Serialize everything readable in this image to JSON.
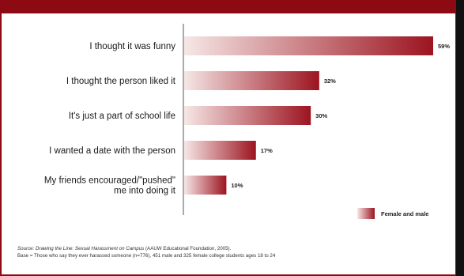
{
  "chart_data": {
    "type": "bar",
    "orientation": "horizontal",
    "categories": [
      "I thought it was funny",
      "I thought the person liked it",
      "It's just a part of school life",
      "I wanted a date with the person",
      "My friends encouraged/\"pushed\" me into doing it"
    ],
    "category_lines": [
      [
        "I thought it was funny"
      ],
      [
        "I thought the person liked it"
      ],
      [
        "It's just a part of school life"
      ],
      [
        "I wanted a date with the person"
      ],
      [
        "My friends encouraged/\"pushed\"",
        "me into doing it"
      ]
    ],
    "series": [
      {
        "name": "Female and male",
        "values": [
          59,
          32,
          30,
          17,
          10
        ],
        "labels": [
          "59%",
          "32%",
          "30%",
          "17%",
          "10%"
        ]
      }
    ],
    "xlim": [
      0,
      59
    ],
    "grid": false,
    "legend_position": "bottom-right"
  },
  "colors": {
    "bar_dark": "#9c1420",
    "bar_light": "#f6e7e6",
    "frame": "#8e0a12"
  },
  "source": {
    "prefix": "Source: ",
    "italic": "Drawing the Line: Sexual Harassment on Campus",
    "suffix": " (AAUW Educational Foundation, 2005).",
    "base": "Base = Those who say they ever harassed someone (n=776), 451 male and 325 female college students ages 18 to 24"
  }
}
